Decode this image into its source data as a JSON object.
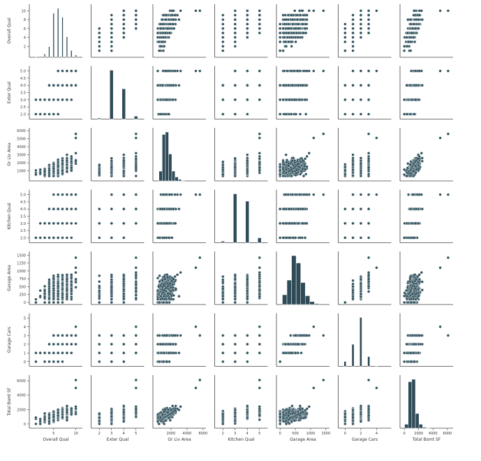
{
  "figure": {
    "type": "pairplot",
    "marker_color": "#2f505c",
    "bar_color": "#2f4b58",
    "point_edge_color": "#ffffff",
    "background": "#ffffff",
    "axis_color": "#444444"
  },
  "variables": [
    {
      "name": "Overall Qual",
      "range": [
        0,
        11
      ],
      "ticks": [
        2,
        4,
        6,
        8,
        10
      ],
      "xticks": [
        5,
        10
      ],
      "xrange": [
        0,
        11
      ],
      "values": [
        1,
        2,
        3,
        4,
        5,
        6,
        7,
        8,
        9,
        10
      ],
      "hist": {
        "centers": [
          1,
          2,
          3,
          4,
          5,
          6,
          7,
          8,
          9,
          10
        ],
        "heights": [
          0.01,
          0.02,
          0.07,
          0.22,
          0.9,
          1.0,
          0.82,
          0.42,
          0.14,
          0.05
        ]
      }
    },
    {
      "name": "Exter Qual",
      "range": [
        1.8,
        5.2
      ],
      "ticks": [
        2.0,
        2.5,
        3.0,
        3.5,
        4.0,
        4.5,
        5.0
      ],
      "xticks": [
        2,
        3,
        4,
        5
      ],
      "xrange": [
        1.5,
        5.5
      ],
      "values": [
        2,
        3,
        4,
        5
      ],
      "hist": {
        "centers": [
          2,
          3,
          4,
          5
        ],
        "heights": [
          0.02,
          1.0,
          0.62,
          0.06
        ]
      }
    },
    {
      "name": "Gr Liv Area",
      "range": [
        0,
        6100
      ],
      "ticks": [
        1000,
        2000,
        3000,
        4000,
        5000,
        6000
      ],
      "xticks": [
        2000,
        4000,
        6000
      ],
      "xrange": [
        0,
        6100
      ],
      "values": [],
      "hist": {
        "centers": [
          700,
          1100,
          1500,
          1900,
          2300,
          2700,
          3100,
          3500
        ],
        "heights": [
          0.2,
          0.95,
          1.0,
          0.55,
          0.2,
          0.08,
          0.03,
          0.01
        ]
      }
    },
    {
      "name": "Kitchen Qual",
      "range": [
        1.8,
        5.2
      ],
      "ticks": [
        2.0,
        2.5,
        3.0,
        3.5,
        4.0,
        4.5,
        5.0
      ],
      "xticks": [
        2,
        3,
        4,
        5
      ],
      "xrange": [
        1.5,
        5.5
      ],
      "values": [
        2,
        3,
        4,
        5
      ],
      "hist": {
        "centers": [
          2,
          3,
          4,
          5
        ],
        "heights": [
          0.03,
          1.0,
          0.85,
          0.1
        ]
      }
    },
    {
      "name": "Garage Area",
      "range": [
        0,
        1550
      ],
      "ticks": [
        0,
        250,
        500,
        750,
        1000,
        1250,
        1500
      ],
      "xticks": [
        0,
        500,
        1000,
        1500
      ],
      "xrange": [
        -50,
        1550
      ],
      "values": [],
      "hist": {
        "centers": [
          150,
          300,
          450,
          600,
          750,
          900,
          1050,
          1200
        ],
        "heights": [
          0.2,
          0.5,
          1.0,
          0.85,
          0.45,
          0.18,
          0.06,
          0.02
        ]
      }
    },
    {
      "name": "Garage Cars",
      "range": [
        -0.3,
        5.3
      ],
      "ticks": [
        0,
        1,
        2,
        3,
        4,
        5
      ],
      "xticks": [
        0,
        2,
        4
      ],
      "xrange": [
        -0.6,
        5.6
      ],
      "values": [
        0,
        1,
        2,
        3,
        4,
        5
      ],
      "hist": {
        "centers": [
          0,
          1,
          2,
          3,
          4
        ],
        "heights": [
          0.1,
          0.45,
          1.0,
          0.2,
          0.01
        ]
      }
    },
    {
      "name": "Total Bsmt SF",
      "range": [
        -300,
        6500
      ],
      "ticks": [
        0,
        2000,
        4000,
        6000
      ],
      "xticks": [
        0,
        2000,
        4000,
        6000
      ],
      "xrange": [
        -300,
        6500
      ],
      "values": [],
      "hist": {
        "centers": [
          300,
          800,
          1300,
          1800,
          2300,
          2800,
          3300
        ],
        "heights": [
          0.08,
          0.95,
          1.0,
          0.3,
          0.08,
          0.02,
          0.01
        ]
      }
    }
  ],
  "chart_data": {
    "type": "scatter",
    "title": "",
    "variables": [
      "Overall Qual",
      "Exter Qual",
      "Gr Liv Area",
      "Kitchen Qual",
      "Garage Area",
      "Garage Cars",
      "Total Bsmt SF"
    ],
    "diagonal": "histogram",
    "grid": false,
    "legend": "none",
    "points": [
      {
        "Overall Qual": 1,
        "Exter Qual": 2,
        "Gr Liv Area": 520,
        "Kitchen Qual": 2,
        "Garage Area": 0,
        "Garage Cars": 0,
        "Total Bsmt SF": 0
      },
      {
        "Overall Qual": 2,
        "Exter Qual": 2,
        "Gr Liv Area": 750,
        "Kitchen Qual": 3,
        "Garage Area": 200,
        "Garage Cars": 1,
        "Total Bsmt SF": 400
      },
      {
        "Overall Qual": 3,
        "Exter Qual": 3,
        "Gr Liv Area": 900,
        "Kitchen Qual": 3,
        "Garage Area": 280,
        "Garage Cars": 1,
        "Total Bsmt SF": 600
      },
      {
        "Overall Qual": 4,
        "Exter Qual": 3,
        "Gr Liv Area": 1050,
        "Kitchen Qual": 3,
        "Garage Area": 320,
        "Garage Cars": 1,
        "Total Bsmt SF": 800
      },
      {
        "Overall Qual": 5,
        "Exter Qual": 3,
        "Gr Liv Area": 1150,
        "Kitchen Qual": 3,
        "Garage Area": 380,
        "Garage Cars": 1,
        "Total Bsmt SF": 900
      },
      {
        "Overall Qual": 5,
        "Exter Qual": 3,
        "Gr Liv Area": 1300,
        "Kitchen Qual": 3,
        "Garage Area": 440,
        "Garage Cars": 2,
        "Total Bsmt SF": 1000
      },
      {
        "Overall Qual": 6,
        "Exter Qual": 3,
        "Gr Liv Area": 1450,
        "Kitchen Qual": 3,
        "Garage Area": 480,
        "Garage Cars": 2,
        "Total Bsmt SF": 1050
      },
      {
        "Overall Qual": 6,
        "Exter Qual": 4,
        "Gr Liv Area": 1600,
        "Kitchen Qual": 4,
        "Garage Area": 520,
        "Garage Cars": 2,
        "Total Bsmt SF": 1150
      },
      {
        "Overall Qual": 7,
        "Exter Qual": 4,
        "Gr Liv Area": 1750,
        "Kitchen Qual": 4,
        "Garage Area": 560,
        "Garage Cars": 2,
        "Total Bsmt SF": 1250
      },
      {
        "Overall Qual": 7,
        "Exter Qual": 4,
        "Gr Liv Area": 1900,
        "Kitchen Qual": 4,
        "Garage Area": 600,
        "Garage Cars": 2,
        "Total Bsmt SF": 1350
      },
      {
        "Overall Qual": 8,
        "Exter Qual": 4,
        "Gr Liv Area": 2100,
        "Kitchen Qual": 4,
        "Garage Area": 680,
        "Garage Cars": 3,
        "Total Bsmt SF": 1500
      },
      {
        "Overall Qual": 8,
        "Exter Qual": 4,
        "Gr Liv Area": 2300,
        "Kitchen Qual": 4,
        "Garage Area": 740,
        "Garage Cars": 3,
        "Total Bsmt SF": 1650
      },
      {
        "Overall Qual": 9,
        "Exter Qual": 5,
        "Gr Liv Area": 2500,
        "Kitchen Qual": 5,
        "Garage Area": 820,
        "Garage Cars": 3,
        "Total Bsmt SF": 1900
      },
      {
        "Overall Qual": 9,
        "Exter Qual": 5,
        "Gr Liv Area": 2800,
        "Kitchen Qual": 5,
        "Garage Area": 880,
        "Garage Cars": 3,
        "Total Bsmt SF": 2100
      },
      {
        "Overall Qual": 10,
        "Exter Qual": 5,
        "Gr Liv Area": 3200,
        "Kitchen Qual": 5,
        "Garage Area": 950,
        "Garage Cars": 3,
        "Total Bsmt SF": 2400
      },
      {
        "Overall Qual": 10,
        "Exter Qual": 5,
        "Gr Liv Area": 5600,
        "Kitchen Qual": 5,
        "Garage Area": 1420,
        "Garage Cars": 3,
        "Total Bsmt SF": 6100
      },
      {
        "Overall Qual": 10,
        "Exter Qual": 5,
        "Gr Liv Area": 5100,
        "Kitchen Qual": 5,
        "Garage Area": 1100,
        "Garage Cars": 4,
        "Total Bsmt SF": 5000
      }
    ]
  }
}
